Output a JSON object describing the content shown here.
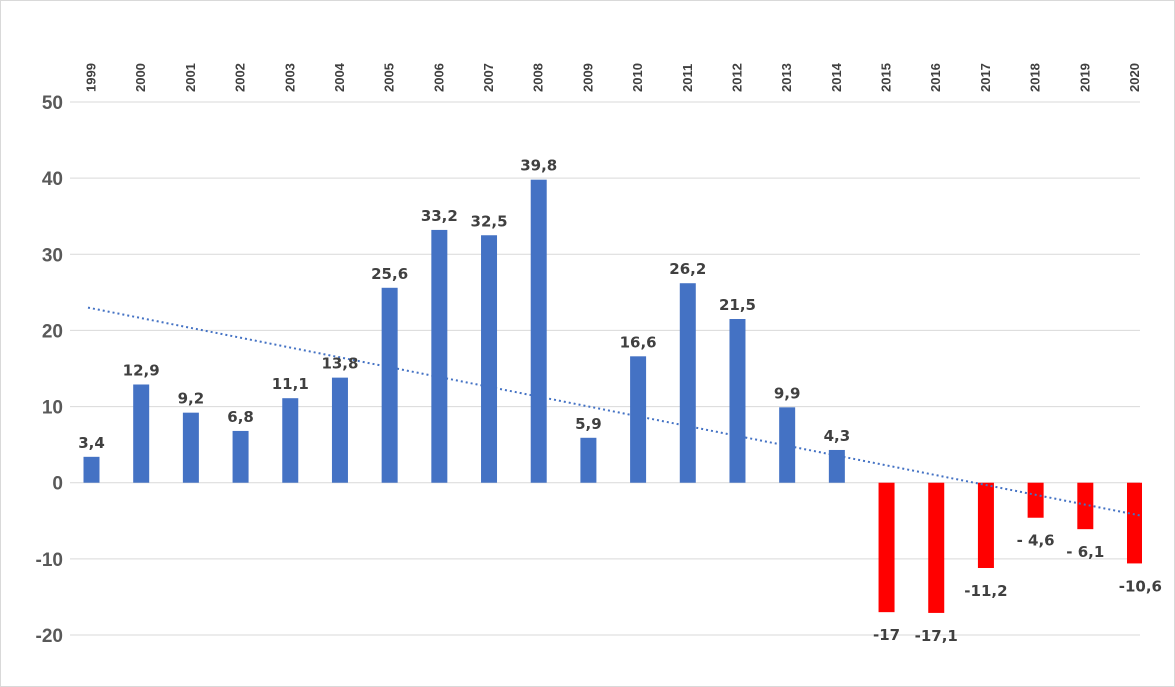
{
  "chart_data": {
    "type": "bar",
    "categories": [
      "1999",
      "2000",
      "2001",
      "2002",
      "2003",
      "2004",
      "2005",
      "2006",
      "2007",
      "2008",
      "2009",
      "2010",
      "2011",
      "2012",
      "2013",
      "2014",
      "2015",
      "2016",
      "2017",
      "2018",
      "2019",
      "2020"
    ],
    "values": [
      3.4,
      12.9,
      9.2,
      6.8,
      11.1,
      13.8,
      25.6,
      33.2,
      32.5,
      39.8,
      5.9,
      16.6,
      26.2,
      21.5,
      9.9,
      4.3,
      -17,
      -17.1,
      -11.2,
      -4.6,
      -6.1,
      -10.6
    ],
    "data_labels": [
      "3,4",
      "12,9",
      "9,2",
      "6,8",
      "11,1",
      "13,8",
      "25,6",
      "33,2",
      "32,5",
      "39,8",
      "5,9",
      "16,6",
      "26,2",
      "21,5",
      "9,9",
      "4,3",
      "-17",
      "-17,1",
      "-11,2",
      "- 4,6",
      "- 6,1",
      "-10,6"
    ],
    "title": "",
    "xlabel": "",
    "ylabel": "",
    "ylim": [
      -20,
      50
    ],
    "yticks": [
      "50",
      "40",
      "30",
      "20",
      "10",
      "0",
      "-10",
      "-20"
    ],
    "ytick_values": [
      50,
      40,
      30,
      20,
      10,
      0,
      -10,
      -20
    ],
    "x_axis_position": "top",
    "x_tick_rotation": "vertical",
    "grid": true,
    "legend": "none",
    "colors": {
      "positive": "#4472c4",
      "negative": "#ff0000",
      "trendline": "#4472c4",
      "grid": "#d9d9d9"
    },
    "trendline": {
      "type": "linear",
      "style": "dotted",
      "start_value": 23.0,
      "end_value": -4.3
    }
  }
}
